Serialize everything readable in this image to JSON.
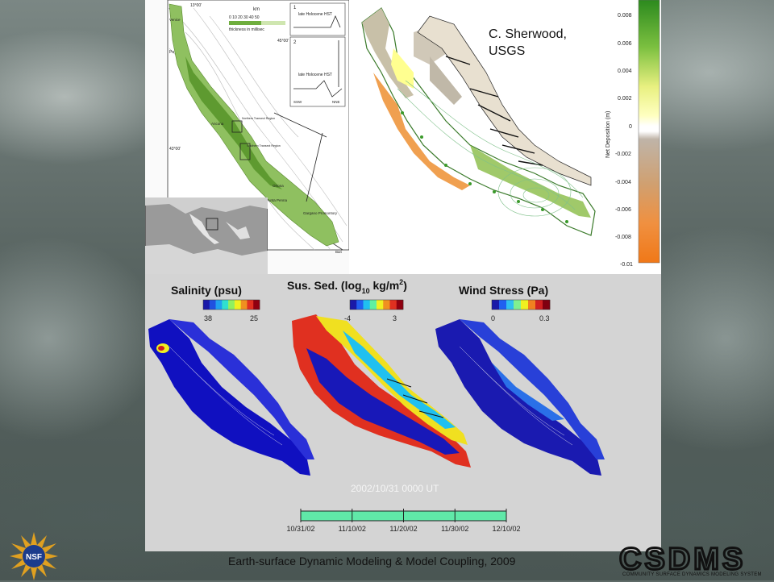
{
  "slide": {
    "credit": "C. Sherwood,\nUSGS",
    "footer": "Earth-surface Dynamic Modeling & Model Coupling, 2009",
    "timestamp": "2002/10/31 0000 UT",
    "timeline_dates": [
      "10/31/02",
      "11/10/02",
      "11/20/02",
      "11/30/02",
      "12/10/02"
    ],
    "logos": {
      "nsf": "NSF",
      "csdms": "CSDMS",
      "csdms_subtitle": "COMMUNITY SURFACE DYNAMICS MODELING SYSTEM"
    }
  },
  "geology_map": {
    "scale_label": "0 10 20 30 40 50",
    "scale_unit": "km",
    "legend_text": "thickness in millisec",
    "labels": [
      "13°00'",
      "Venice",
      "Po",
      "45°00'",
      "43°00'",
      "Ancona",
      "Northern Transect Region",
      "Southern Transect Region",
      "Ortona",
      "Punta Penna",
      "Gargano Promontory",
      "Bari"
    ],
    "profile_labels": [
      "1",
      "late Holocene HST",
      "2",
      "late Holocene HST",
      "SSW",
      "NNE"
    ]
  },
  "deposition_colorbar": {
    "axis_label": "Net Deposition (m)",
    "ticks": [
      "0.008",
      "0.006",
      "0.004",
      "0.002",
      "0",
      "-0.002",
      "-0.004",
      "-0.006",
      "-0.008",
      "-0.01"
    ]
  },
  "panels": [
    {
      "title_main": "Salinity (psu)",
      "ticks": [
        "38",
        "25"
      ],
      "colors": [
        "#1a1aa8",
        "#2050e0",
        "#20a0f0",
        "#30e0d0",
        "#90f060",
        "#f0f020",
        "#f09020",
        "#e03020",
        "#900010"
      ]
    },
    {
      "title_main": "Sus. Sed. (log",
      "title_sub": "10",
      "title_end": " kg/m",
      "title_sup": "2",
      "title_close": ")",
      "ticks": [
        "-4",
        "3"
      ],
      "colors": [
        "#1a1aa8",
        "#2060f0",
        "#20c0f0",
        "#60f0a0",
        "#f0f020",
        "#f09020",
        "#e03020",
        "#900010"
      ]
    },
    {
      "title_main": "Wind Stress (Pa)",
      "ticks": [
        "0",
        "0.3"
      ],
      "colors": [
        "#1a1aa8",
        "#2060f0",
        "#30c0f0",
        "#80f090",
        "#f0f020",
        "#f08020",
        "#d02020",
        "#800010"
      ]
    }
  ]
}
